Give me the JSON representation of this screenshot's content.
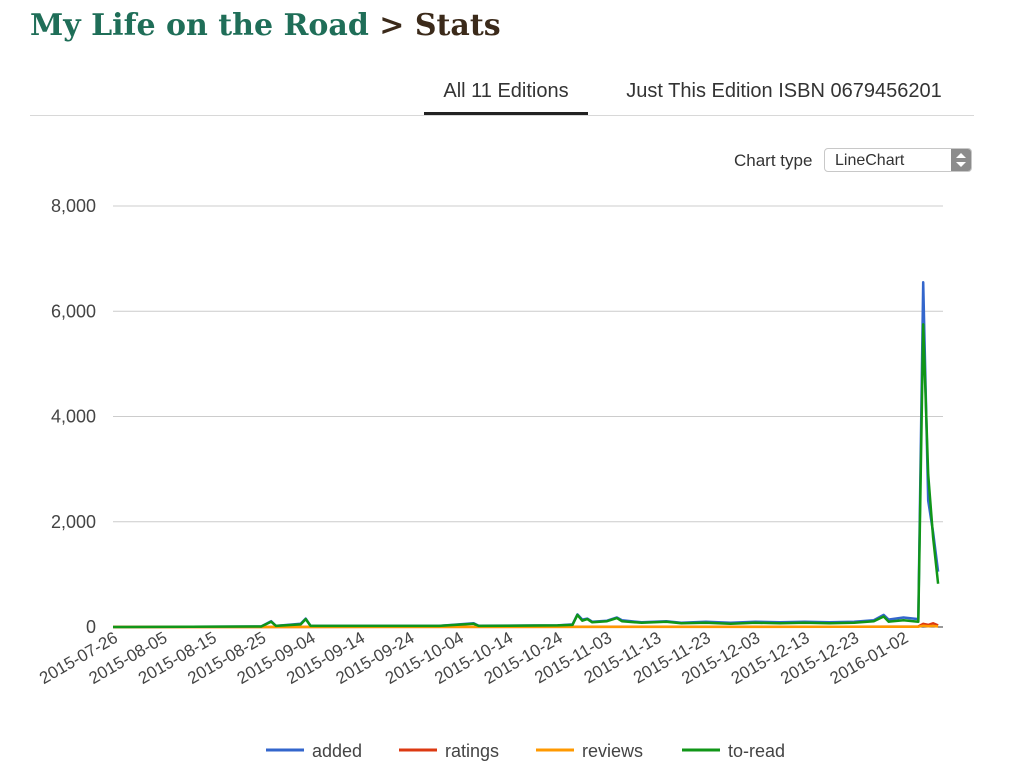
{
  "page": {
    "book_title": "My Life on the Road",
    "separator": ">",
    "section_title": "Stats"
  },
  "tabs": [
    {
      "label": "All 11 Editions",
      "active": true
    },
    {
      "label": "Just This Edition ISBN 0679456201",
      "active": false
    }
  ],
  "chart_controls": {
    "label": "Chart type",
    "selected": "LineChart"
  },
  "chart_data": {
    "type": "line",
    "y_ticks": [
      "0",
      "2,000",
      "4,000",
      "6,000",
      "8,000"
    ],
    "ylim": [
      0,
      8000
    ],
    "x_tick_labels": [
      "2015-07-26",
      "2015-08-05",
      "2015-08-15",
      "2015-08-25",
      "2015-09-04",
      "2015-09-14",
      "2015-09-24",
      "2015-10-04",
      "2015-10-14",
      "2015-10-24",
      "2015-11-03",
      "2015-11-13",
      "2015-11-23",
      "2015-12-03",
      "2015-12-13",
      "2015-12-23",
      "2016-01-02"
    ],
    "x_start": "2015-07-26",
    "x_end": "2016-01-10",
    "grid": true,
    "legend_position": "bottom",
    "series": [
      {
        "name": "added",
        "color": "#3366cc",
        "points": [
          [
            "2015-07-26",
            0
          ],
          [
            "2015-08-25",
            10
          ],
          [
            "2015-08-27",
            110
          ],
          [
            "2015-08-28",
            20
          ],
          [
            "2015-09-02",
            60
          ],
          [
            "2015-09-03",
            160
          ],
          [
            "2015-09-04",
            20
          ],
          [
            "2015-09-30",
            20
          ],
          [
            "2015-10-07",
            70
          ],
          [
            "2015-10-08",
            25
          ],
          [
            "2015-10-24",
            30
          ],
          [
            "2015-10-27",
            50
          ],
          [
            "2015-10-28",
            240
          ],
          [
            "2015-10-29",
            140
          ],
          [
            "2015-10-30",
            160
          ],
          [
            "2015-10-31",
            100
          ],
          [
            "2015-11-03",
            120
          ],
          [
            "2015-11-05",
            180
          ],
          [
            "2015-11-06",
            130
          ],
          [
            "2015-11-10",
            90
          ],
          [
            "2015-11-15",
            110
          ],
          [
            "2015-11-18",
            80
          ],
          [
            "2015-11-23",
            100
          ],
          [
            "2015-11-28",
            80
          ],
          [
            "2015-12-03",
            100
          ],
          [
            "2015-12-08",
            90
          ],
          [
            "2015-12-13",
            100
          ],
          [
            "2015-12-18",
            90
          ],
          [
            "2015-12-23",
            100
          ],
          [
            "2015-12-27",
            130
          ],
          [
            "2015-12-29",
            230
          ],
          [
            "2015-12-30",
            140
          ],
          [
            "2016-01-02",
            180
          ],
          [
            "2016-01-05",
            150
          ],
          [
            "2016-01-06",
            6550
          ],
          [
            "2016-01-07",
            2400
          ],
          [
            "2016-01-08",
            1800
          ],
          [
            "2016-01-09",
            1050
          ]
        ]
      },
      {
        "name": "ratings",
        "color": "#dc3912",
        "points": [
          [
            "2015-07-26",
            0
          ],
          [
            "2015-12-20",
            5
          ],
          [
            "2016-01-05",
            10
          ],
          [
            "2016-01-06",
            60
          ],
          [
            "2016-01-07",
            40
          ],
          [
            "2016-01-08",
            70
          ],
          [
            "2016-01-09",
            30
          ]
        ]
      },
      {
        "name": "reviews",
        "color": "#ff9900",
        "points": [
          [
            "2015-07-26",
            0
          ],
          [
            "2015-12-20",
            3
          ],
          [
            "2016-01-05",
            5
          ],
          [
            "2016-01-06",
            25
          ],
          [
            "2016-01-07",
            15
          ],
          [
            "2016-01-08",
            20
          ],
          [
            "2016-01-09",
            10
          ]
        ]
      },
      {
        "name": "to-read",
        "color": "#109618",
        "points": [
          [
            "2015-07-26",
            0
          ],
          [
            "2015-08-25",
            10
          ],
          [
            "2015-08-27",
            100
          ],
          [
            "2015-08-28",
            20
          ],
          [
            "2015-09-02",
            50
          ],
          [
            "2015-09-03",
            150
          ],
          [
            "2015-09-04",
            20
          ],
          [
            "2015-09-30",
            20
          ],
          [
            "2015-10-07",
            60
          ],
          [
            "2015-10-08",
            20
          ],
          [
            "2015-10-24",
            30
          ],
          [
            "2015-10-27",
            40
          ],
          [
            "2015-10-28",
            230
          ],
          [
            "2015-10-29",
            120
          ],
          [
            "2015-10-30",
            150
          ],
          [
            "2015-10-31",
            90
          ],
          [
            "2015-11-03",
            110
          ],
          [
            "2015-11-05",
            170
          ],
          [
            "2015-11-06",
            110
          ],
          [
            "2015-11-10",
            80
          ],
          [
            "2015-11-15",
            100
          ],
          [
            "2015-11-18",
            70
          ],
          [
            "2015-11-23",
            80
          ],
          [
            "2015-11-28",
            60
          ],
          [
            "2015-12-03",
            80
          ],
          [
            "2015-12-08",
            70
          ],
          [
            "2015-12-13",
            80
          ],
          [
            "2015-12-18",
            70
          ],
          [
            "2015-12-23",
            80
          ],
          [
            "2015-12-27",
            110
          ],
          [
            "2015-12-29",
            200
          ],
          [
            "2015-12-30",
            100
          ],
          [
            "2016-01-02",
            130
          ],
          [
            "2016-01-05",
            100
          ],
          [
            "2016-01-06",
            5750
          ],
          [
            "2016-01-07",
            2900
          ],
          [
            "2016-01-08",
            1700
          ],
          [
            "2016-01-09",
            820
          ]
        ]
      }
    ]
  }
}
